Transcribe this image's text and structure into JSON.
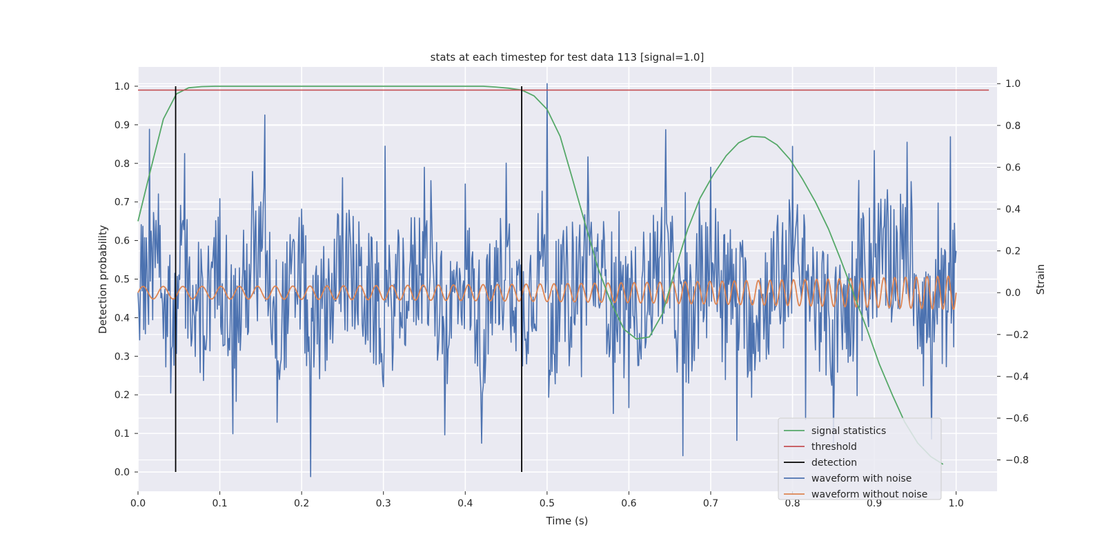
{
  "chart_data": {
    "type": "line",
    "title": "stats at each timestep for test data 113 [signal=1.0]",
    "xlabel": "Time (s)",
    "ylabel": "Detection probability",
    "ylabel_right": "Strain",
    "xlim": [
      0.0,
      1.05
    ],
    "ylim": [
      -0.05,
      1.05
    ],
    "ylim_right": [
      -0.95,
      1.08
    ],
    "x_ticks": [
      "0.0",
      "0.1",
      "0.2",
      "0.3",
      "0.4",
      "0.5",
      "0.6",
      "0.7",
      "0.8",
      "0.9",
      "1.0"
    ],
    "y_ticks": [
      "0.0",
      "0.1",
      "0.2",
      "0.3",
      "0.4",
      "0.5",
      "0.6",
      "0.7",
      "0.8",
      "0.9",
      "1.0"
    ],
    "y_right_ticks": [
      "−0.8",
      "−0.6",
      "−0.4",
      "−0.2",
      "0.0",
      "0.2",
      "0.4",
      "0.6",
      "0.8",
      "1.0"
    ],
    "grid": true,
    "legend_position": "lower-right",
    "series": [
      {
        "name": "signal statistics",
        "axis": "left",
        "color": "#55a868",
        "x": [
          0.0,
          0.015,
          0.031,
          0.047,
          0.062,
          0.078,
          0.094,
          0.109,
          0.125,
          0.2,
          0.3,
          0.4,
          0.422,
          0.437,
          0.453,
          0.469,
          0.484,
          0.5,
          0.516,
          0.531,
          0.547,
          0.562,
          0.578,
          0.594,
          0.609,
          0.625,
          0.641,
          0.656,
          0.672,
          0.687,
          0.703,
          0.719,
          0.734,
          0.75,
          0.766,
          0.781,
          0.797,
          0.812,
          0.828,
          0.844,
          0.859,
          0.875,
          0.891,
          0.906,
          0.922,
          0.937,
          0.953,
          0.969,
          0.984
        ],
        "values": [
          0.65,
          0.78,
          0.915,
          0.98,
          0.996,
          0.999,
          1.0,
          1.0,
          1.0,
          1.0,
          1.0,
          1.0,
          1.0,
          0.998,
          0.995,
          0.99,
          0.975,
          0.94,
          0.87,
          0.76,
          0.64,
          0.53,
          0.44,
          0.37,
          0.345,
          0.35,
          0.41,
          0.52,
          0.63,
          0.71,
          0.77,
          0.82,
          0.853,
          0.87,
          0.868,
          0.848,
          0.81,
          0.76,
          0.7,
          0.63,
          0.55,
          0.46,
          0.37,
          0.28,
          0.2,
          0.13,
          0.075,
          0.04,
          0.02
        ]
      },
      {
        "name": "threshold",
        "axis": "left",
        "color": "#c44e52",
        "x": [
          0.0,
          1.04
        ],
        "values": [
          0.99,
          0.99
        ]
      },
      {
        "name": "detection",
        "axis": "left",
        "color": "#000000",
        "x_positions": [
          0.046,
          0.469
        ],
        "range": [
          0.0,
          1.0
        ]
      },
      {
        "name": "waveform with noise",
        "axis": "right",
        "color": "#4c72b0",
        "x": [
          0.0,
          0.02,
          0.04,
          0.06,
          0.08,
          0.1,
          0.12,
          0.14,
          0.155,
          0.17,
          0.2,
          0.211,
          0.25,
          0.3,
          0.35,
          0.375,
          0.4,
          0.42,
          0.45,
          0.47,
          0.5,
          0.502,
          0.55,
          0.6,
          0.645,
          0.666,
          0.7,
          0.75,
          0.8,
          0.85,
          0.9,
          0.94,
          0.97,
          1.0
        ],
        "values": [
          0.0,
          0.3,
          -0.48,
          0.35,
          -0.42,
          0.45,
          -0.52,
          0.58,
          0.85,
          -0.62,
          0.4,
          -0.88,
          0.55,
          -0.45,
          0.6,
          -0.68,
          0.52,
          -0.72,
          0.62,
          -0.35,
          1.0,
          -0.5,
          0.65,
          -0.55,
          0.78,
          -0.78,
          0.6,
          -0.5,
          0.7,
          -0.72,
          0.68,
          0.72,
          -0.7,
          0.2
        ],
        "noise_amplitude": 0.32
      },
      {
        "name": "waveform without noise",
        "axis": "right",
        "color": "#dd8452",
        "x_start": 0.0,
        "x_end": 1.0,
        "amplitude_start": 0.03,
        "amplitude_end": 0.08,
        "frequency_start_hz": 40,
        "frequency_end_hz": 78
      }
    ]
  }
}
